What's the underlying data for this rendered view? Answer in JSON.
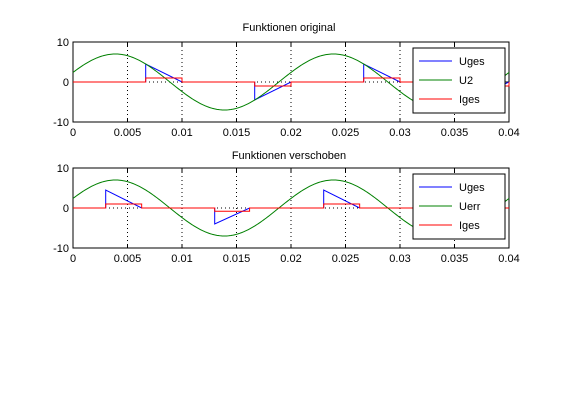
{
  "chart_data": [
    {
      "type": "line",
      "title": "Funktionen original",
      "xlim": [
        0,
        0.04
      ],
      "ylim": [
        -10,
        10
      ],
      "xticks": [
        0,
        0.005,
        0.01,
        0.015,
        0.02,
        0.025,
        0.03,
        0.035,
        0.04
      ],
      "xticklabels": [
        "0",
        "0.005",
        "0.01",
        "0.015",
        "0.02",
        "0.025",
        "0.03",
        "0.035",
        "0.04"
      ],
      "yticks": [
        -10,
        0,
        10
      ],
      "yticklabels": [
        "-10",
        "0",
        "10"
      ],
      "grid": "x-dotted",
      "legend": "top-right",
      "series": [
        {
          "name": "Uges",
          "color": "#0000ff",
          "points": [
            [
              0,
              0
            ],
            [
              0.00667,
              0
            ],
            [
              0.00667,
              4.5
            ],
            [
              0.01,
              0
            ],
            [
              0.01667,
              0
            ],
            [
              0.01667,
              -4.5
            ],
            [
              0.02,
              0
            ],
            [
              0.02667,
              0
            ],
            [
              0.02667,
              4.5
            ],
            [
              0.03,
              0
            ],
            [
              0.03667,
              0
            ],
            [
              0.03667,
              -4.5
            ],
            [
              0.04,
              0
            ]
          ]
        },
        {
          "name": "U2",
          "color": "#008000",
          "amplitude": 7,
          "frequency": 50,
          "phase_deg": 20
        },
        {
          "name": "Iges",
          "color": "#ff0000",
          "points": [
            [
              0,
              0
            ],
            [
              0.00667,
              0
            ],
            [
              0.00667,
              1.0
            ],
            [
              0.01,
              1.0
            ],
            [
              0.01,
              0
            ],
            [
              0.01667,
              0
            ],
            [
              0.01667,
              -1.0
            ],
            [
              0.02,
              -1.0
            ],
            [
              0.02,
              0
            ],
            [
              0.02667,
              0
            ],
            [
              0.02667,
              1.0
            ],
            [
              0.03,
              1.0
            ],
            [
              0.03,
              0
            ],
            [
              0.03667,
              0
            ],
            [
              0.03667,
              -1.0
            ],
            [
              0.04,
              -1.0
            ],
            [
              0.04,
              0
            ]
          ]
        }
      ]
    },
    {
      "type": "line",
      "title": "Funktionen verschoben",
      "xlim": [
        0,
        0.04
      ],
      "ylim": [
        -10,
        10
      ],
      "xticks": [
        0,
        0.005,
        0.01,
        0.015,
        0.02,
        0.025,
        0.03,
        0.035,
        0.04
      ],
      "xticklabels": [
        "0",
        "0.005",
        "0.01",
        "0.015",
        "0.02",
        "0.025",
        "0.03",
        "0.035",
        "0.04"
      ],
      "yticks": [
        -10,
        0,
        10
      ],
      "yticklabels": [
        "-10",
        "0",
        "10"
      ],
      "grid": "x-dotted",
      "legend": "top-right",
      "series": [
        {
          "name": "Uges",
          "color": "#0000ff",
          "points": [
            [
              0,
              0
            ],
            [
              0.003,
              0
            ],
            [
              0.003,
              4.5
            ],
            [
              0.0063,
              0
            ],
            [
              0.013,
              0
            ],
            [
              0.013,
              -4.0
            ],
            [
              0.0162,
              0
            ],
            [
              0.023,
              0
            ],
            [
              0.023,
              4.5
            ],
            [
              0.0263,
              0
            ],
            [
              0.033,
              0
            ],
            [
              0.033,
              -4.0
            ],
            [
              0.0362,
              0
            ],
            [
              0.04,
              0
            ]
          ]
        },
        {
          "name": "Uerr",
          "color": "#008000",
          "amplitude": 7,
          "frequency": 50,
          "phase_deg": 20
        },
        {
          "name": "Iges",
          "color": "#ff0000",
          "points": [
            [
              0,
              0
            ],
            [
              0.003,
              0
            ],
            [
              0.003,
              1.0
            ],
            [
              0.0063,
              1.0
            ],
            [
              0.0063,
              0
            ],
            [
              0.013,
              0
            ],
            [
              0.013,
              -0.8
            ],
            [
              0.0162,
              -0.8
            ],
            [
              0.0162,
              0
            ],
            [
              0.023,
              0
            ],
            [
              0.023,
              1.0
            ],
            [
              0.0263,
              1.0
            ],
            [
              0.0263,
              0
            ],
            [
              0.033,
              0
            ],
            [
              0.033,
              -0.8
            ],
            [
              0.0362,
              -0.8
            ],
            [
              0.0362,
              0
            ],
            [
              0.04,
              0
            ]
          ]
        }
      ]
    }
  ]
}
